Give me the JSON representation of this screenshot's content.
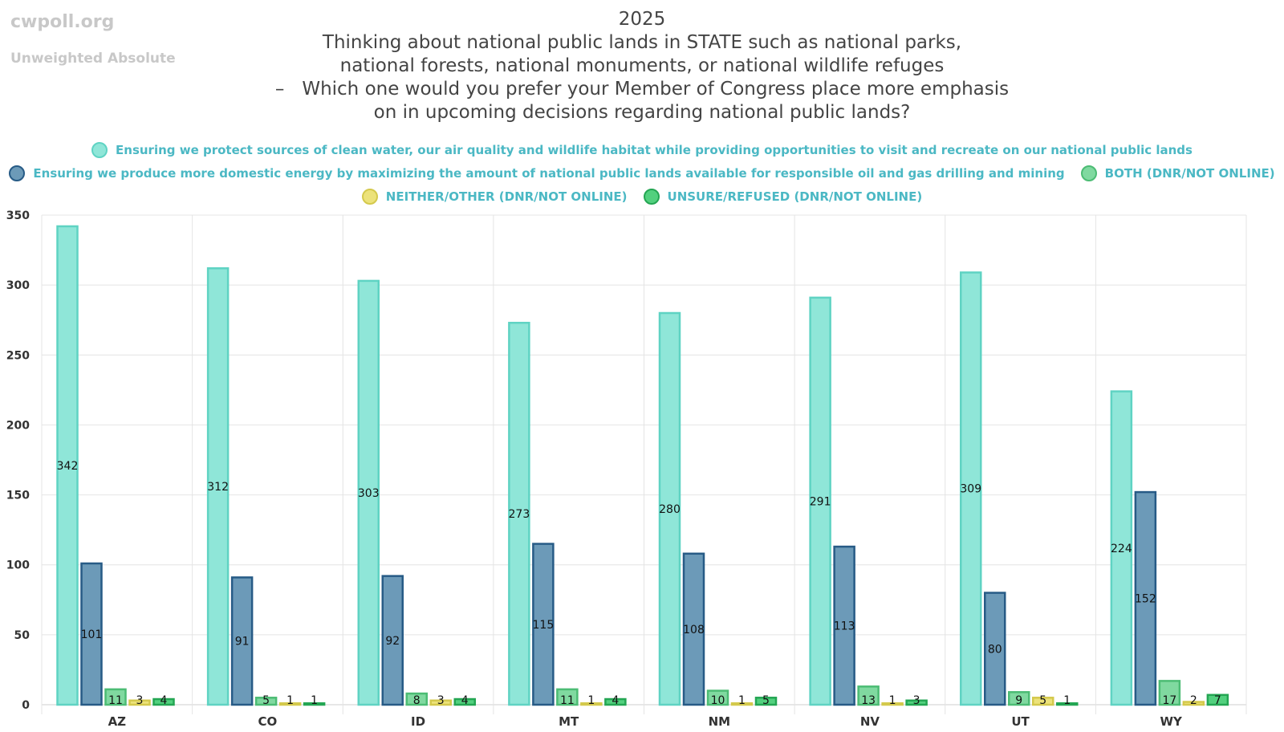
{
  "brand": "cwpoll.org",
  "subtitle": "Unweighted Absolute",
  "title_lines": [
    "2025",
    "Thinking about national public lands in STATE such as national parks,",
    "national forests, national monuments, or national wildlife refuges",
    "–   Which one would you prefer your Member of Congress place more emphasis",
    "on in upcoming decisions regarding national public lands?"
  ],
  "chart_data": {
    "type": "bar",
    "categories": [
      "AZ",
      "CO",
      "ID",
      "MT",
      "NM",
      "NV",
      "UT",
      "WY"
    ],
    "ylim": [
      0,
      350
    ],
    "yticks": [
      0,
      50,
      100,
      150,
      200,
      250,
      300,
      350
    ],
    "grid": true,
    "legend_position": "top-center",
    "series": [
      {
        "name": "Ensuring we protect sources of clean water, our air quality and wildlife habitat while providing opportunities to visit and recreate on our national public lands",
        "color": "#8fe6d8",
        "stroke": "#5fd3c3",
        "values": [
          342,
          312,
          303,
          273,
          280,
          291,
          309,
          224
        ]
      },
      {
        "name": "Ensuring we produce more domestic energy by maximizing the amount of national public lands available for responsible oil and gas drilling and mining",
        "color": "#6c9ab8",
        "stroke": "#275b86",
        "values": [
          101,
          91,
          92,
          115,
          108,
          113,
          80,
          152
        ]
      },
      {
        "name": "BOTH (DNR/NOT ONLINE)",
        "color": "#80d9a0",
        "stroke": "#4cbc74",
        "values": [
          11,
          5,
          8,
          11,
          10,
          13,
          9,
          17
        ]
      },
      {
        "name": "NEITHER/OTHER (DNR/NOT ONLINE)",
        "color": "#ece27a",
        "stroke": "#d4c94c",
        "values": [
          3,
          1,
          3,
          1,
          1,
          1,
          5,
          2
        ]
      },
      {
        "name": "UNSURE/REFUSED (DNR/NOT ONLINE)",
        "color": "#52d07e",
        "stroke": "#24a653",
        "values": [
          4,
          1,
          4,
          4,
          5,
          3,
          1,
          7
        ]
      }
    ]
  }
}
